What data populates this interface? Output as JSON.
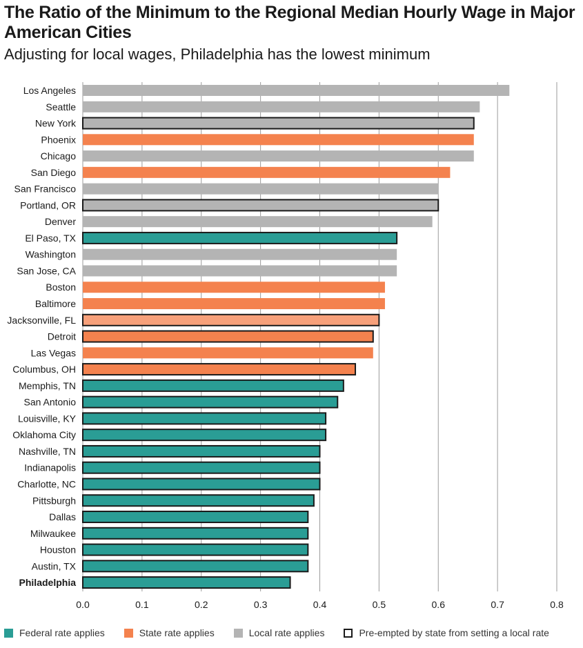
{
  "chart_data": {
    "type": "bar",
    "orientation": "horizontal",
    "title": "The Ratio of the Minimum to the Regional Median Hourly Wage in Major American Cities",
    "subtitle": "Adjusting for local wages, Philadelphia has the lowest minimum",
    "xlim": [
      0,
      0.8
    ],
    "xticks": [
      "0.0",
      "0.1",
      "0.2",
      "0.3",
      "0.4",
      "0.5",
      "0.6",
      "0.7",
      "0.8"
    ],
    "grid": "vertical",
    "legend_position": "bottom",
    "colors": {
      "federal": "#2a9d95",
      "state": "#f4824e",
      "state_light": "#f7a07a",
      "local": "#b4b4b4",
      "outline": "#1a1a1a"
    },
    "categories": [
      "Los Angeles",
      "Seattle",
      "New York",
      "Phoenix",
      "Chicago",
      "San Diego",
      "San Francisco",
      "Portland, OR",
      "Denver",
      "El Paso, TX",
      "Washington",
      "San Jose, CA",
      "Boston",
      "Baltimore",
      "Jacksonville, FL",
      "Detroit",
      "Las Vegas",
      "Columbus, OH",
      "Memphis, TN",
      "San Antonio",
      "Louisville, KY",
      "Oklahoma City",
      "Nashville, TN",
      "Indianapolis",
      "Charlotte, NC",
      "Pittsburgh",
      "Dallas",
      "Milwaukee",
      "Houston",
      "Austin, TX",
      "Philadelphia"
    ],
    "values": [
      0.72,
      0.67,
      0.66,
      0.66,
      0.66,
      0.62,
      0.6,
      0.6,
      0.59,
      0.53,
      0.53,
      0.53,
      0.51,
      0.51,
      0.5,
      0.49,
      0.49,
      0.46,
      0.44,
      0.43,
      0.41,
      0.41,
      0.4,
      0.4,
      0.4,
      0.39,
      0.38,
      0.38,
      0.38,
      0.38,
      0.35
    ],
    "rate_type": [
      "local",
      "local",
      "local",
      "state",
      "local",
      "state",
      "local",
      "local",
      "local",
      "federal",
      "local",
      "local",
      "state",
      "state",
      "state_light",
      "state",
      "state",
      "state",
      "federal",
      "federal",
      "federal",
      "federal",
      "federal",
      "federal",
      "federal",
      "federal",
      "federal",
      "federal",
      "federal",
      "federal",
      "federal"
    ],
    "preempted": [
      false,
      false,
      true,
      false,
      false,
      false,
      false,
      true,
      false,
      true,
      false,
      false,
      false,
      false,
      true,
      true,
      false,
      true,
      true,
      true,
      true,
      true,
      true,
      true,
      true,
      true,
      true,
      true,
      true,
      true,
      true
    ],
    "highlighted": "Philadelphia",
    "legend": [
      {
        "label": "Federal rate applies",
        "swatch": "federal",
        "outline": false
      },
      {
        "label": "State rate applies",
        "swatch": "state",
        "outline": false
      },
      {
        "label": "Local rate applies",
        "swatch": "local",
        "outline": false
      },
      {
        "label": "Pre-empted by state from setting a local rate",
        "swatch": "none",
        "outline": true
      }
    ]
  }
}
